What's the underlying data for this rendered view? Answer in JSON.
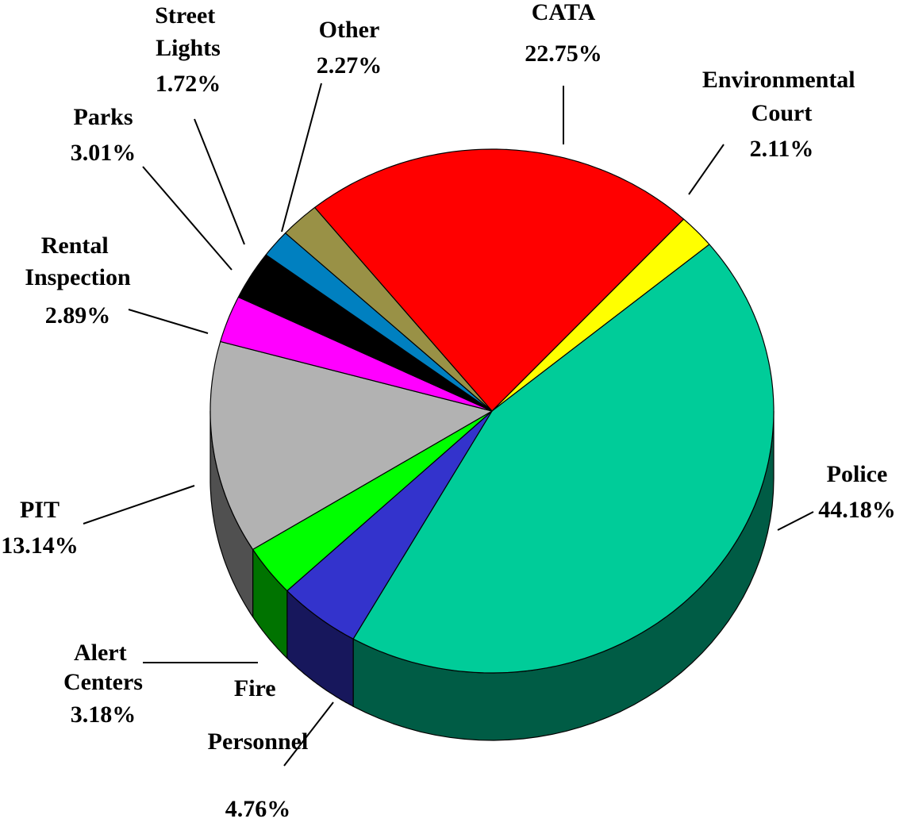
{
  "chart_data": {
    "type": "pie",
    "categories": [
      "CATA",
      "Environmental Court",
      "Police",
      "Fire Personnel",
      "Alert Centers",
      "PIT",
      "Rental Inspection",
      "Parks",
      "Street Lights",
      "Other"
    ],
    "values": [
      22.75,
      2.11,
      44.18,
      4.76,
      3.18,
      13.14,
      2.89,
      3.01,
      1.72,
      2.27
    ],
    "value_labels": [
      "22.75%",
      "2.11%",
      "44.18%",
      "4.76%",
      "3.18%",
      "13.14%",
      "2.89%",
      "3.01%",
      "1.72%",
      "2.27%"
    ],
    "colors": [
      "#ff0000",
      "#ffff00",
      "#00cc99",
      "#3333cc",
      "#00ff00",
      "#b2b2b2",
      "#ff00ff",
      "#000000",
      "#0080c0",
      "#999146"
    ]
  }
}
